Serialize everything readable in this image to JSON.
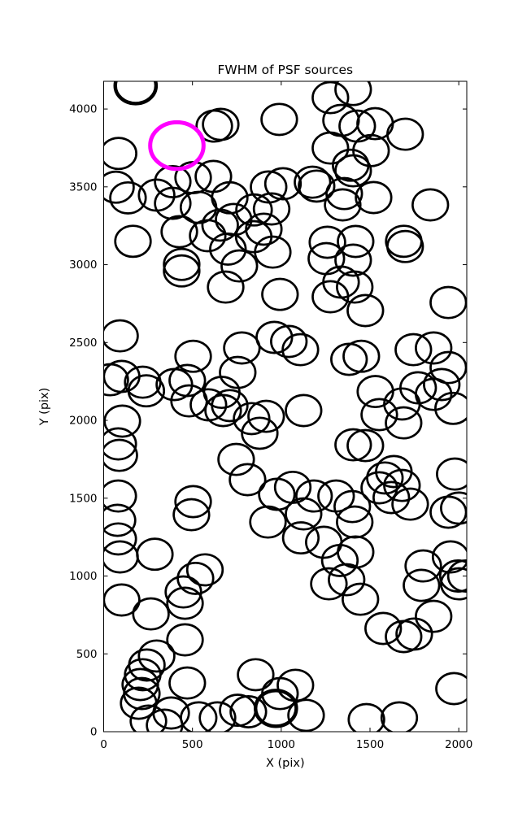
{
  "figure": {
    "background": "#ffffff"
  },
  "chart_data": {
    "type": "scatter",
    "title": "FWHM of PSF sources",
    "xlabel": "X (pix)",
    "ylabel": "Y (pix)",
    "xlim": [
      0,
      2045
    ],
    "ylim": [
      0,
      4178
    ],
    "xticks": [
      0,
      500,
      1000,
      1500,
      2000
    ],
    "yticks": [
      0,
      500,
      1000,
      1500,
      2000,
      2500,
      3000,
      3500,
      4000
    ],
    "grid": false,
    "legend": null,
    "marker": "open-circle",
    "default_radius": 100,
    "circle_color": "#000000",
    "highlight_color": "#ff00ff",
    "highlight_circle": {
      "x": 412,
      "y": 3765,
      "r": 150
    },
    "thick_points": [
      [
        180,
        4150
      ],
      [
        970,
        150
      ]
    ],
    "points": [
      [
        623,
        3890
      ],
      [
        659,
        3901
      ],
      [
        989,
        3933
      ],
      [
        1277,
        4073
      ],
      [
        1405,
        4125
      ],
      [
        1337,
        3927
      ],
      [
        1428,
        3890
      ],
      [
        1529,
        3906
      ],
      [
        1698,
        3838
      ],
      [
        1506,
        3733
      ],
      [
        1277,
        3749
      ],
      [
        1391,
        3639
      ],
      [
        1176,
        3530
      ],
      [
        1199,
        3505
      ],
      [
        1405,
        3603
      ],
      [
        1355,
        3457
      ],
      [
        1520,
        3431
      ],
      [
        1346,
        3384
      ],
      [
        1840,
        3384
      ],
      [
        1690,
        3150
      ],
      [
        1010,
        3520
      ],
      [
        84,
        3715
      ],
      [
        69,
        3498
      ],
      [
        137,
        3429
      ],
      [
        298,
        3447
      ],
      [
        389,
        3533
      ],
      [
        504,
        3559
      ],
      [
        618,
        3567
      ],
      [
        389,
        3394
      ],
      [
        534,
        3368
      ],
      [
        710,
        3430
      ],
      [
        732,
        3290
      ],
      [
        656,
        3254
      ],
      [
        847,
        3352
      ],
      [
        929,
        3499
      ],
      [
        946,
        3358
      ],
      [
        165,
        3150
      ],
      [
        426,
        3212
      ],
      [
        586,
        3186
      ],
      [
        902,
        3228
      ],
      [
        845,
        3180
      ],
      [
        439,
        3002
      ],
      [
        439,
        2960
      ],
      [
        700,
        3100
      ],
      [
        764,
        2992
      ],
      [
        687,
        2856
      ],
      [
        952,
        3081
      ],
      [
        993,
        2809
      ],
      [
        1254,
        3039
      ],
      [
        1405,
        3029
      ],
      [
        1260,
        3144
      ],
      [
        1419,
        3149
      ],
      [
        1337,
        2888
      ],
      [
        1277,
        2794
      ],
      [
        1414,
        2856
      ],
      [
        1698,
        3117
      ],
      [
        1474,
        2705
      ],
      [
        1941,
        2757
      ],
      [
        92,
        2543
      ],
      [
        101,
        2282
      ],
      [
        37,
        2261
      ],
      [
        220,
        2245
      ],
      [
        504,
        2412
      ],
      [
        471,
        2256
      ],
      [
        398,
        2230
      ],
      [
        778,
        2465
      ],
      [
        755,
        2308
      ],
      [
        961,
        2533
      ],
      [
        1043,
        2507
      ],
      [
        1108,
        2454
      ],
      [
        1382,
        2392
      ],
      [
        1451,
        2412
      ],
      [
        1744,
        2454
      ],
      [
        1858,
        2465
      ],
      [
        1941,
        2339
      ],
      [
        1904,
        2230
      ],
      [
        1771,
        2209
      ],
      [
        1858,
        2167
      ],
      [
        665,
        2180
      ],
      [
        673,
        2063
      ],
      [
        710,
        2095
      ],
      [
        481,
        2125
      ],
      [
        590,
        2100
      ],
      [
        833,
        2011
      ],
      [
        915,
        2026
      ],
      [
        879,
        1917
      ],
      [
        240,
        2190
      ],
      [
        105,
        1995
      ],
      [
        82,
        1849
      ],
      [
        88,
        1775
      ],
      [
        1126,
        2063
      ],
      [
        1530,
        2185
      ],
      [
        1552,
        2037
      ],
      [
        1689,
        1984
      ],
      [
        1680,
        2105
      ],
      [
        1968,
        2077
      ],
      [
        1405,
        1843
      ],
      [
        1474,
        1838
      ],
      [
        1634,
        1671
      ],
      [
        1584,
        1630
      ],
      [
        1680,
        1582
      ],
      [
        1620,
        1504
      ],
      [
        1552,
        1567
      ],
      [
        1726,
        1462
      ],
      [
        1977,
        1655
      ],
      [
        2000,
        1436
      ],
      [
        1941,
        1410
      ],
      [
        746,
        1749
      ],
      [
        810,
        1619
      ],
      [
        504,
        1478
      ],
      [
        494,
        1394
      ],
      [
        82,
        1514
      ],
      [
        78,
        1358
      ],
      [
        82,
        1238
      ],
      [
        288,
        1140
      ],
      [
        92,
        1123
      ],
      [
        975,
        1525
      ],
      [
        1065,
        1570
      ],
      [
        1185,
        1514
      ],
      [
        1309,
        1514
      ],
      [
        1400,
        1446
      ],
      [
        1414,
        1347
      ],
      [
        1126,
        1399
      ],
      [
        925,
        1347
      ],
      [
        1110,
        1245
      ],
      [
        1240,
        1217
      ],
      [
        570,
        1040
      ],
      [
        1330,
        1100
      ],
      [
        1419,
        1154
      ],
      [
        1800,
        1065
      ],
      [
        1954,
        1123
      ],
      [
        1995,
        1000
      ],
      [
        101,
        846
      ],
      [
        266,
        757
      ],
      [
        458,
        825
      ],
      [
        449,
        898
      ],
      [
        517,
        985
      ],
      [
        458,
        590
      ],
      [
        298,
        486
      ],
      [
        243,
        428
      ],
      [
        220,
        366
      ],
      [
        206,
        303
      ],
      [
        215,
        245
      ],
      [
        197,
        183
      ],
      [
        471,
        313
      ],
      [
        380,
        120
      ],
      [
        252,
        68
      ],
      [
        343,
        42
      ],
      [
        535,
        89
      ],
      [
        641,
        89
      ],
      [
        856,
        366
      ],
      [
        755,
        138
      ],
      [
        815,
        128
      ],
      [
        993,
        245
      ],
      [
        1080,
        298
      ],
      [
        1140,
        105
      ],
      [
        1480,
        78
      ],
      [
        1665,
        89
      ],
      [
        1268,
        950
      ],
      [
        1368,
        976
      ],
      [
        1446,
        851
      ],
      [
        1574,
        663
      ],
      [
        1689,
        611
      ],
      [
        1790,
        940
      ],
      [
        1858,
        741
      ],
      [
        1749,
        627
      ],
      [
        2000,
        950
      ],
      [
        2040,
        1000
      ],
      [
        1973,
        277
      ]
    ]
  }
}
